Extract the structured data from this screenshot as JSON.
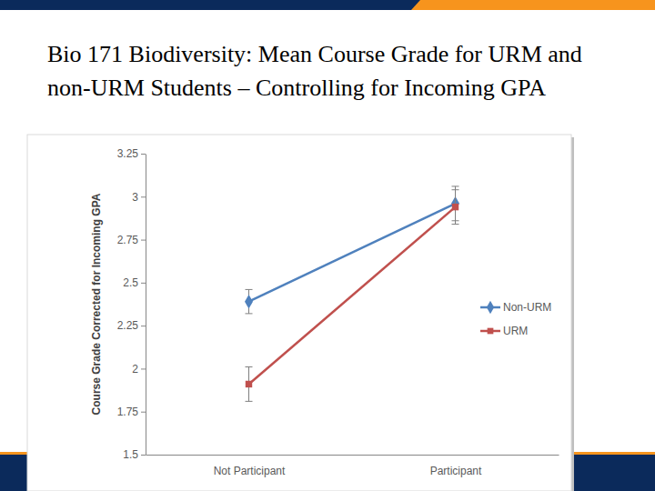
{
  "chart_data": {
    "type": "line",
    "title": "Bio 171 Biodiversity: Mean Course Grade for URM and non-URM Students – Controlling for Incoming GPA",
    "y_label": "Course Grade Corrected for Incoming GPA",
    "categories": [
      "Not Participant",
      "Participant"
    ],
    "series": [
      {
        "name": "Non-URM",
        "color": "#4f81bd",
        "marker": "diamond",
        "values": [
          2.39,
          2.96
        ],
        "errors": [
          0.07,
          0.1
        ]
      },
      {
        "name": "URM",
        "color": "#c0504d",
        "marker": "square",
        "values": [
          1.91,
          2.94
        ],
        "errors": [
          0.1,
          0.1
        ]
      }
    ],
    "ylim": [
      1.5,
      3.25
    ],
    "yticks": [
      1.5,
      1.75,
      2,
      2.25,
      2.5,
      2.75,
      3,
      3.25
    ],
    "legend": "right"
  }
}
